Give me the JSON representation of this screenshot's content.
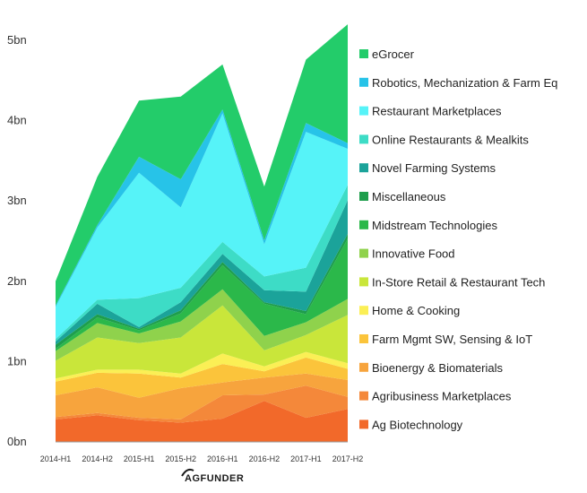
{
  "chart_data": {
    "type": "area",
    "stacked": true,
    "title": "",
    "xlabel": "",
    "ylabel": "",
    "x": [
      "2014-H1",
      "2014-H2",
      "2015-H1",
      "2015-H2",
      "2016-H1",
      "2016-H2",
      "2017-H1",
      "2017-H2"
    ],
    "ylim": [
      0,
      5
    ],
    "yticks": [
      "0bn",
      "1bn",
      "2bn",
      "3bn",
      "4bn",
      "5bn"
    ],
    "grid": false,
    "legend_position": "right",
    "series": [
      {
        "name": "Ag Biotechnology",
        "color": "#f2692a",
        "values": [
          0.28,
          0.33,
          0.27,
          0.24,
          0.29,
          0.51,
          0.3,
          0.41
        ]
      },
      {
        "name": "Agribusiness Marketplaces",
        "color": "#f4883a",
        "values": [
          0.03,
          0.03,
          0.03,
          0.04,
          0.29,
          0.08,
          0.4,
          0.15
        ]
      },
      {
        "name": "Bioenergy & Biomaterials",
        "color": "#f7a43d",
        "values": [
          0.27,
          0.32,
          0.25,
          0.39,
          0.16,
          0.21,
          0.15,
          0.21
        ]
      },
      {
        "name": "Farm Mgmt SW, Sensing & IoT",
        "color": "#fbc43b",
        "values": [
          0.17,
          0.18,
          0.3,
          0.13,
          0.23,
          0.08,
          0.2,
          0.14
        ]
      },
      {
        "name": "Home & Cooking",
        "color": "#fbef55",
        "values": [
          0.04,
          0.04,
          0.05,
          0.05,
          0.13,
          0.06,
          0.07,
          0.07
        ]
      },
      {
        "name": "In-Store Retail & Restaurant Tech",
        "color": "#c9e63a",
        "values": [
          0.22,
          0.4,
          0.33,
          0.45,
          0.6,
          0.2,
          0.21,
          0.6
        ]
      },
      {
        "name": "Innovative Food",
        "color": "#8fd24c",
        "values": [
          0.12,
          0.18,
          0.12,
          0.2,
          0.2,
          0.18,
          0.16,
          0.2
        ]
      },
      {
        "name": "Midstream Technologies",
        "color": "#2bb84a",
        "values": [
          0.03,
          0.07,
          0.04,
          0.1,
          0.3,
          0.4,
          0.1,
          0.75
        ]
      },
      {
        "name": "Miscellaneous",
        "color": "#1e9e4c",
        "values": [
          0.05,
          0.04,
          0.02,
          0.04,
          0.04,
          0.02,
          0.04,
          0.06
        ]
      },
      {
        "name": "Novel Farming Systems",
        "color": "#1ba39a",
        "values": [
          0.04,
          0.13,
          0.02,
          0.1,
          0.1,
          0.15,
          0.24,
          0.42
        ]
      },
      {
        "name": "Online Restaurants & Mealkits",
        "color": "#3ddcc6",
        "values": [
          0.03,
          0.05,
          0.36,
          0.18,
          0.15,
          0.17,
          0.3,
          0.19
        ]
      },
      {
        "name": "Restaurant Marketplaces",
        "color": "#56f3f8",
        "values": [
          0.4,
          0.9,
          1.56,
          1.0,
          1.6,
          0.4,
          1.69,
          0.45
        ]
      },
      {
        "name": "Robotics, Mechanization & Farm Eq",
        "color": "#27c3e8",
        "values": [
          0.02,
          0.03,
          0.2,
          0.35,
          0.05,
          0.05,
          0.11,
          0.07
        ]
      },
      {
        "name": "eGrocer",
        "color": "#23cc6a",
        "values": [
          0.3,
          0.6,
          0.7,
          1.03,
          0.56,
          0.67,
          0.79,
          1.48
        ]
      }
    ]
  },
  "brand": {
    "logo_text": "AGFUNDER"
  }
}
